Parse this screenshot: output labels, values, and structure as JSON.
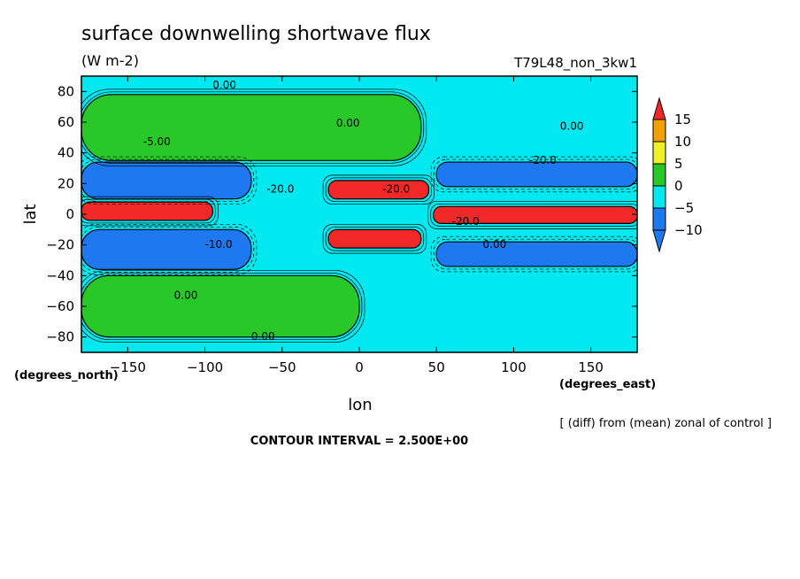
{
  "chart_data": {
    "type": "heatmap",
    "title": "surface downwelling shortwave flux",
    "units": "(W m-2)",
    "experiment": "T79L48_non_3kw1",
    "xlabel": "lon",
    "ylabel": "lat",
    "x_unit_label": "(degrees_east)",
    "y_unit_label": "(degrees_north)",
    "xlim": [
      -180,
      180
    ],
    "ylim": [
      -90,
      90
    ],
    "x_ticks": [
      -150,
      -100,
      -50,
      0,
      50,
      100,
      150
    ],
    "y_ticks": [
      -80,
      -60,
      -40,
      -20,
      0,
      20,
      40,
      60,
      80
    ],
    "colorbar": {
      "levels": [
        -10,
        -5,
        0,
        5,
        10,
        15
      ],
      "bins": [
        {
          "range": "< -10",
          "color": "#1e78f0"
        },
        {
          "range": "-10 to -5",
          "color": "#1e78f0"
        },
        {
          "range": "-5 to 0",
          "color": "#00e8f0"
        },
        {
          "range": "0 to 5",
          "color": "#28c828"
        },
        {
          "range": "5 to 10",
          "color": "#f0f028"
        },
        {
          "range": "10 to 15",
          "color": "#f0a000"
        },
        {
          "range": "> 15",
          "color": "#f02828"
        }
      ]
    },
    "contour_labels": [
      "0.00",
      "0.00",
      "0.00",
      "-5.00",
      "-20.0",
      "-20.0",
      "-20.0",
      "-20.0",
      "-10.0",
      "0.00",
      "0.00",
      "0.00"
    ],
    "background_value_range": "-5 to 0",
    "regions": [
      {
        "name": "tropical-west",
        "lon": [
          -180,
          -95
        ],
        "lat": [
          -4,
          8
        ],
        "value_range": "> 15"
      },
      {
        "name": "tropical-east",
        "lon": [
          48,
          180
        ],
        "lat": [
          -6,
          5
        ],
        "value_range": "> 15"
      },
      {
        "name": "north-subtropical-red",
        "lon": [
          -20,
          45
        ],
        "lat": [
          10,
          22
        ],
        "value_range": "> 15"
      },
      {
        "name": "south-subtropical-red",
        "lon": [
          -20,
          40
        ],
        "lat": [
          -22,
          -10
        ],
        "value_range": "> 15"
      },
      {
        "name": "north-blue-band-west",
        "lon": [
          -180,
          -70
        ],
        "lat": [
          10,
          34
        ],
        "value_range": "-10 to -5"
      },
      {
        "name": "north-blue-band-east",
        "lon": [
          50,
          180
        ],
        "lat": [
          18,
          34
        ],
        "value_range": "-10 to -5"
      },
      {
        "name": "south-blue-band-west",
        "lon": [
          -180,
          -70
        ],
        "lat": [
          -36,
          -10
        ],
        "value_range": "-10 to -5"
      },
      {
        "name": "south-blue-band-east",
        "lon": [
          50,
          180
        ],
        "lat": [
          -34,
          -18
        ],
        "value_range": "-10 to -5"
      },
      {
        "name": "north-green",
        "lon": [
          -180,
          40
        ],
        "lat": [
          35,
          78
        ],
        "value_range": "0 to 5"
      },
      {
        "name": "south-green",
        "lon": [
          -180,
          0
        ],
        "lat": [
          -80,
          -40
        ],
        "value_range": "0 to 5"
      }
    ],
    "note": "[ (diff) from (mean) zonal of control ]",
    "contour_interval": "CONTOUR INTERVAL = 2.500E+00"
  }
}
